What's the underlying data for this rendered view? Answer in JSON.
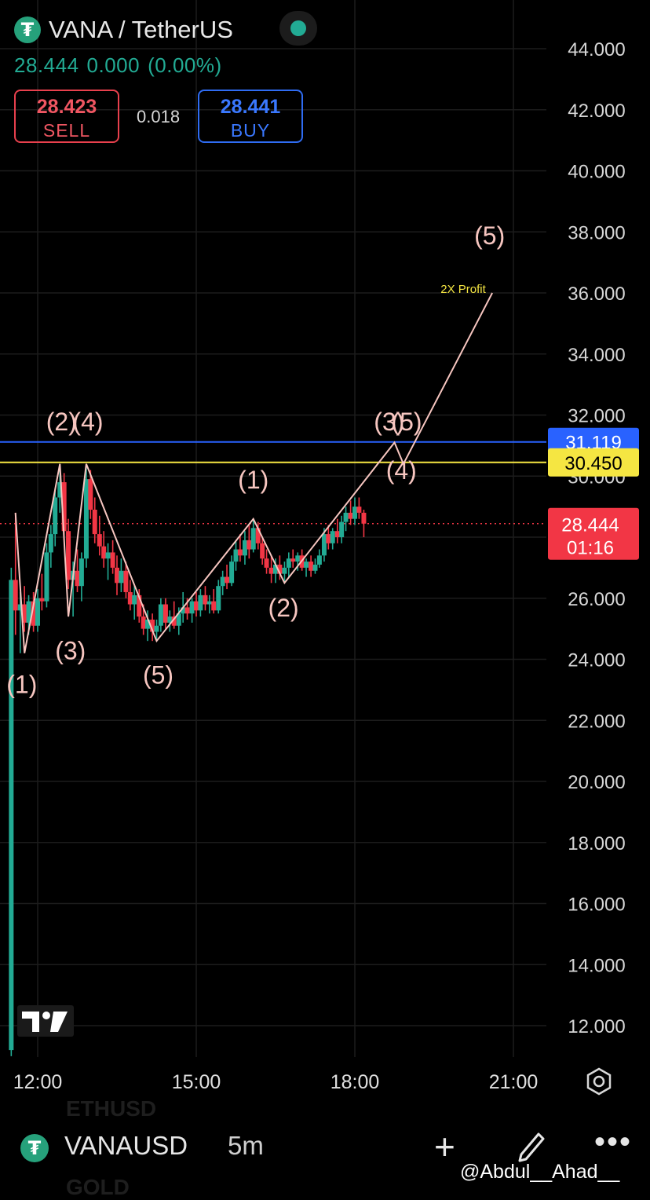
{
  "header": {
    "pair": "VANA / TetherUS",
    "last": "28.444",
    "change": "0.000",
    "change_pct": "(0.00%)",
    "sell_price": "28.423",
    "sell_label": "SELL",
    "spread": "0.018",
    "buy_price": "28.441",
    "buy_label": "BUY"
  },
  "colors": {
    "up": "#22ab94",
    "down": "#f23645",
    "blue_line": "#2962ff",
    "yellow_line": "#f5e642",
    "wave": "#f7c6c0"
  },
  "chart_data": {
    "type": "candlestick",
    "title": "",
    "ylim": [
      11.0,
      45.5
    ],
    "yticks": [
      "12.000",
      "14.000",
      "16.000",
      "18.000",
      "20.000",
      "22.000",
      "24.000",
      "26.000",
      "28.000",
      "30.000",
      "32.000",
      "34.000",
      "36.000",
      "38.000",
      "40.000",
      "42.000",
      "44.000"
    ],
    "x_ticks": [
      {
        "label": "12:00",
        "t": 12.0
      },
      {
        "label": "15:00",
        "t": 15.0
      },
      {
        "label": "18:00",
        "t": 18.0
      },
      {
        "label": "21:00",
        "t": 21.0
      }
    ],
    "x_range_hours": [
      11.5,
      22.0
    ],
    "candles": [
      [
        11.5,
        11.2,
        27.0,
        11.0,
        26.6
      ],
      [
        11.58,
        26.6,
        28.8,
        24.8,
        25.6
      ],
      [
        11.67,
        25.6,
        26.2,
        24.2,
        25.8
      ],
      [
        11.75,
        25.8,
        26.4,
        24.9,
        25.2
      ],
      [
        11.83,
        25.2,
        26.1,
        24.8,
        25.9
      ],
      [
        11.92,
        25.9,
        26.2,
        24.9,
        25.1
      ],
      [
        12.0,
        25.1,
        26.3,
        24.9,
        26.0
      ],
      [
        12.08,
        26.0,
        26.8,
        25.6,
        25.9
      ],
      [
        12.17,
        25.9,
        27.8,
        25.7,
        27.5
      ],
      [
        12.25,
        27.5,
        28.4,
        27.0,
        28.1
      ],
      [
        12.33,
        28.1,
        29.6,
        27.7,
        29.3
      ],
      [
        12.42,
        29.3,
        30.4,
        28.8,
        29.8
      ],
      [
        12.5,
        29.8,
        30.1,
        27.9,
        28.2
      ],
      [
        12.58,
        28.2,
        28.6,
        26.3,
        26.6
      ],
      [
        12.67,
        26.6,
        27.2,
        25.4,
        26.9
      ],
      [
        12.75,
        26.9,
        27.6,
        26.2,
        26.4
      ],
      [
        12.83,
        26.4,
        27.5,
        25.9,
        27.3
      ],
      [
        12.92,
        27.3,
        30.4,
        27.0,
        29.9
      ],
      [
        13.0,
        29.9,
        30.2,
        28.6,
        28.9
      ],
      [
        13.08,
        28.9,
        29.3,
        27.8,
        28.1
      ],
      [
        13.17,
        28.1,
        28.7,
        27.4,
        27.7
      ],
      [
        13.25,
        27.7,
        28.2,
        27.0,
        27.3
      ],
      [
        13.33,
        27.3,
        27.8,
        26.6,
        27.5
      ],
      [
        13.42,
        27.5,
        27.9,
        26.8,
        27.0
      ],
      [
        13.5,
        27.0,
        27.4,
        26.1,
        26.5
      ],
      [
        13.58,
        26.5,
        27.3,
        26.2,
        26.9
      ],
      [
        13.67,
        26.9,
        27.2,
        26.0,
        26.2
      ],
      [
        13.75,
        26.2,
        26.6,
        25.6,
        25.8
      ],
      [
        13.83,
        25.8,
        26.4,
        25.3,
        26.1
      ],
      [
        13.92,
        26.1,
        26.3,
        25.2,
        25.4
      ],
      [
        14.0,
        25.4,
        25.8,
        24.8,
        25.0
      ],
      [
        14.08,
        25.0,
        25.6,
        24.6,
        25.3
      ],
      [
        14.17,
        25.3,
        25.5,
        24.6,
        24.9
      ],
      [
        14.25,
        24.9,
        25.3,
        24.6,
        25.1
      ],
      [
        14.33,
        25.1,
        26.0,
        24.9,
        25.8
      ],
      [
        14.42,
        25.8,
        26.0,
        25.0,
        25.2
      ],
      [
        14.5,
        25.2,
        25.6,
        24.9,
        25.4
      ],
      [
        14.58,
        25.4,
        25.9,
        25.0,
        25.1
      ],
      [
        14.67,
        25.1,
        25.7,
        24.8,
        25.5
      ],
      [
        14.75,
        25.5,
        26.2,
        25.2,
        25.7
      ],
      [
        14.83,
        25.7,
        26.0,
        25.3,
        25.5
      ],
      [
        14.92,
        25.5,
        26.0,
        25.2,
        25.9
      ],
      [
        15.0,
        25.9,
        26.2,
        25.4,
        25.6
      ],
      [
        15.08,
        25.6,
        26.3,
        25.4,
        26.1
      ],
      [
        15.17,
        26.1,
        26.4,
        25.6,
        25.8
      ],
      [
        15.25,
        25.8,
        26.1,
        25.5,
        25.9
      ],
      [
        15.33,
        25.9,
        26.3,
        25.5,
        25.6
      ],
      [
        15.42,
        25.6,
        26.6,
        25.5,
        26.4
      ],
      [
        15.5,
        26.4,
        26.9,
        26.1,
        26.7
      ],
      [
        15.58,
        26.7,
        27.1,
        26.3,
        26.5
      ],
      [
        15.67,
        26.5,
        27.4,
        26.4,
        27.2
      ],
      [
        15.75,
        27.2,
        27.9,
        26.9,
        27.6
      ],
      [
        15.83,
        27.6,
        28.1,
        27.2,
        27.4
      ],
      [
        15.92,
        27.4,
        28.2,
        27.1,
        27.9
      ],
      [
        16.0,
        27.9,
        28.4,
        27.3,
        27.6
      ],
      [
        16.08,
        27.6,
        28.6,
        27.5,
        28.3
      ],
      [
        16.17,
        28.3,
        28.5,
        27.6,
        27.8
      ],
      [
        16.25,
        27.8,
        28.0,
        27.1,
        27.3
      ],
      [
        16.33,
        27.3,
        27.6,
        26.8,
        27.0
      ],
      [
        16.42,
        27.0,
        27.4,
        26.5,
        26.8
      ],
      [
        16.5,
        26.8,
        27.3,
        26.5,
        27.1
      ],
      [
        16.58,
        27.1,
        27.4,
        26.6,
        26.8
      ],
      [
        16.67,
        26.8,
        27.2,
        26.5,
        27.0
      ],
      [
        16.75,
        27.0,
        27.5,
        26.7,
        27.3
      ],
      [
        16.83,
        27.3,
        27.6,
        27.0,
        27.2
      ],
      [
        16.92,
        27.2,
        27.5,
        26.9,
        27.4
      ],
      [
        17.0,
        27.4,
        27.6,
        26.9,
        27.0
      ],
      [
        17.08,
        27.0,
        27.3,
        26.7,
        27.2
      ],
      [
        17.17,
        27.2,
        27.4,
        26.7,
        26.9
      ],
      [
        17.25,
        26.9,
        27.3,
        26.8,
        27.1
      ],
      [
        17.33,
        27.1,
        27.6,
        27.0,
        27.4
      ],
      [
        17.42,
        27.4,
        28.3,
        27.2,
        28.1
      ],
      [
        17.5,
        28.1,
        28.4,
        27.6,
        27.8
      ],
      [
        17.58,
        27.8,
        28.3,
        27.6,
        28.2
      ],
      [
        17.67,
        28.2,
        28.6,
        27.8,
        28.0
      ],
      [
        17.75,
        28.0,
        28.7,
        27.8,
        28.5
      ],
      [
        17.83,
        28.5,
        29.0,
        28.2,
        28.8
      ],
      [
        17.92,
        28.8,
        29.2,
        28.4,
        28.6
      ],
      [
        18.0,
        28.6,
        29.3,
        28.4,
        29.0
      ],
      [
        18.08,
        29.0,
        29.3,
        28.6,
        28.8
      ],
      [
        18.17,
        28.8,
        28.9,
        28.0,
        28.444
      ]
    ],
    "horizontal_lines": [
      {
        "value": 31.119,
        "label": "31.119",
        "color": "#2962ff"
      },
      {
        "value": 30.45,
        "label": "30.450",
        "color": "#f5e642"
      }
    ],
    "current_price": {
      "value": 28.444,
      "label": "28.444",
      "countdown": "01:16",
      "color": "#f23645"
    },
    "wave_path": [
      [
        11.58,
        28.8
      ],
      [
        11.75,
        24.2
      ],
      [
        12.42,
        30.4
      ],
      [
        12.58,
        25.4
      ],
      [
        12.92,
        30.4
      ],
      [
        14.25,
        24.6
      ],
      [
        16.08,
        28.6
      ],
      [
        16.67,
        26.5
      ],
      [
        18.75,
        31.1
      ],
      [
        18.92,
        30.4
      ],
      [
        20.6,
        36.0
      ]
    ],
    "annotations": [
      {
        "text": "(1)",
        "t": 11.7,
        "v": 22.9
      },
      {
        "text": "(2)",
        "t": 12.45,
        "v": 31.5
      },
      {
        "text": "(4)",
        "t": 12.95,
        "v": 31.5
      },
      {
        "text": "(3)",
        "t": 12.62,
        "v": 24.0
      },
      {
        "text": "(5)",
        "t": 14.28,
        "v": 23.2
      },
      {
        "text": "(1)",
        "t": 16.08,
        "v": 29.6
      },
      {
        "text": "(2)",
        "t": 16.65,
        "v": 25.4
      },
      {
        "text": "(3)",
        "t": 18.65,
        "v": 31.5
      },
      {
        "text": "(5)",
        "t": 18.98,
        "v": 31.5
      },
      {
        "text": "(4)",
        "t": 18.88,
        "v": 29.9
      },
      {
        "text": "2X Profit",
        "t": 20.05,
        "v": 36.0,
        "color": "#f5e642",
        "size": 15
      },
      {
        "text": "(5)",
        "t": 20.55,
        "v": 37.6
      }
    ]
  },
  "bottom": {
    "symbol": "VANAUSD",
    "timeframe": "5m",
    "ghost_top": "ETHUSD",
    "ghost_bottom": "GOLD",
    "watermark": "@Abdul__Ahad__"
  }
}
